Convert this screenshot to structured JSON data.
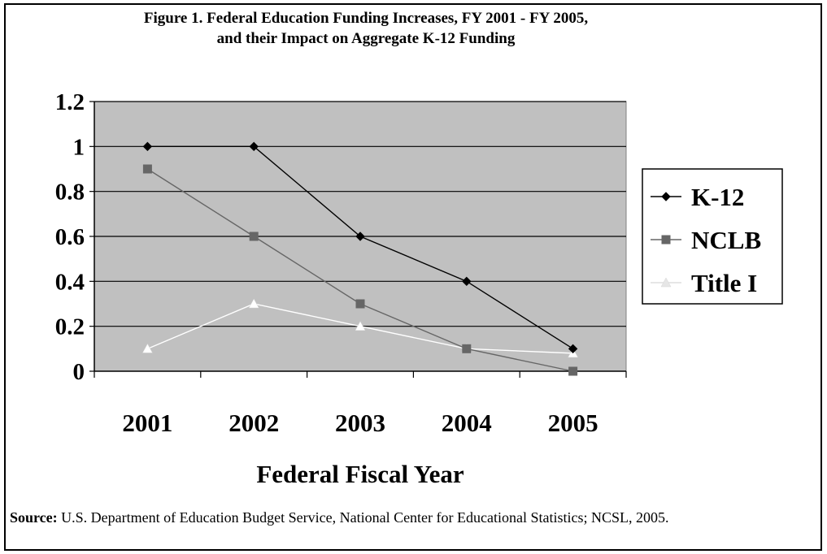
{
  "title": {
    "line1": "Figure 1.  Federal Education Funding Increases, FY 2001 - FY 2005,",
    "line2": "and their Impact on Aggregate K-12 Funding"
  },
  "source": {
    "label": "Source:",
    "text": "  U.S. Department of Education Budget Service, National Center for Educational Statistics; NCSL, 2005."
  },
  "colors": {
    "plot_background": "#c0c0c0",
    "k12": "#000000",
    "nclb": "#666666",
    "title1": "#ffffff"
  },
  "chart_data": {
    "type": "line",
    "title": "Figure 1.  Federal Education Funding Increases, FY 2001 - FY 2005, and their Impact on Aggregate K-12 Funding",
    "xlabel": "Federal Fiscal Year",
    "ylabel": "",
    "categories": [
      "2001",
      "2002",
      "2003",
      "2004",
      "2005"
    ],
    "ylim": [
      0,
      1.2
    ],
    "yticks": [
      "0",
      "0.2",
      "0.4",
      "0.6",
      "0.8",
      "1",
      "1.2"
    ],
    "grid": true,
    "legend_position": "right",
    "series": [
      {
        "name": "K-12",
        "marker": "diamond",
        "values": [
          1.0,
          1.0,
          0.6,
          0.4,
          0.1
        ]
      },
      {
        "name": "NCLB",
        "marker": "square",
        "values": [
          0.9,
          0.6,
          0.3,
          0.1,
          0.0
        ]
      },
      {
        "name": "Title I",
        "marker": "triangle",
        "values": [
          0.1,
          0.3,
          0.2,
          0.1,
          0.08
        ]
      }
    ]
  }
}
